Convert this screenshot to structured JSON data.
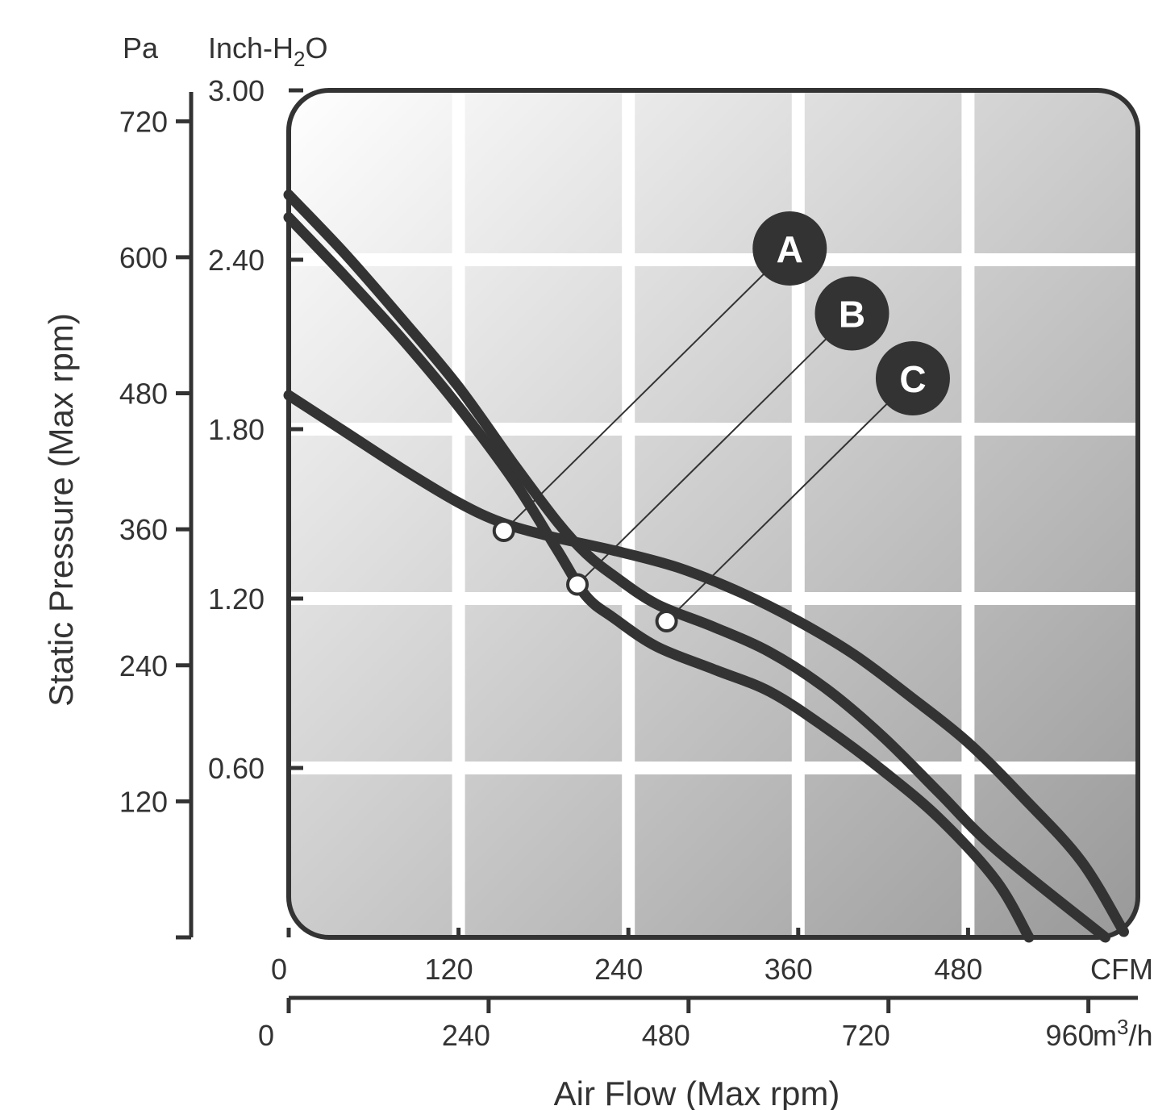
{
  "chart_data": {
    "type": "line",
    "title": "",
    "xlabel": "Air Flow (Max rpm)",
    "ylabel": "Static Pressure (Max rpm)",
    "x_unit_primary": "CFM",
    "x_unit_secondary": "m³/h",
    "x_unit_secondary_base": "m",
    "x_unit_secondary_sup": "3",
    "x_unit_secondary_tail": "/h",
    "y_unit_primary": "Inch-H₂O",
    "y_unit_primary_base": "Inch-H",
    "y_unit_primary_sub": "2",
    "y_unit_primary_tail": "O",
    "y_unit_secondary": "Pa",
    "x_ticks_cfm": [
      "0",
      "120",
      "240",
      "360",
      "480"
    ],
    "x_ticks_m3h": [
      "0",
      "240",
      "480",
      "720",
      "960"
    ],
    "y_ticks_inh2o": [
      "3.00",
      "2.40",
      "1.80",
      "1.20",
      "0.60"
    ],
    "y_ticks_pa": [
      "720",
      "600",
      "480",
      "360",
      "240",
      "120"
    ],
    "xlim_cfm": [
      0,
      600
    ],
    "ylim_inh2o": [
      0,
      3.0
    ],
    "grid": true,
    "series": [
      {
        "name": "A",
        "x": [
          0,
          40,
          80,
          120,
          150,
          185,
          230,
          275,
          320,
          360,
          400,
          440,
          480,
          520,
          560,
          590
        ],
        "y": [
          1.92,
          1.79,
          1.66,
          1.54,
          1.47,
          1.42,
          1.37,
          1.31,
          1.22,
          1.12,
          1.0,
          0.85,
          0.69,
          0.49,
          0.27,
          0.02
        ]
      },
      {
        "name": "B",
        "x": [
          0,
          40,
          80,
          120,
          160,
          190,
          210,
          230,
          260,
          300,
          340,
          380,
          420,
          460,
          500,
          523
        ],
        "y": [
          2.55,
          2.34,
          2.12,
          1.88,
          1.61,
          1.37,
          1.21,
          1.13,
          1.03,
          0.95,
          0.87,
          0.74,
          0.59,
          0.42,
          0.2,
          0.0
        ]
      },
      {
        "name": "C",
        "x": [
          0,
          40,
          80,
          120,
          160,
          190,
          210,
          230,
          260,
          300,
          340,
          380,
          420,
          460,
          500,
          577
        ],
        "y": [
          2.63,
          2.42,
          2.19,
          1.95,
          1.67,
          1.47,
          1.36,
          1.28,
          1.18,
          1.1,
          1.01,
          0.88,
          0.71,
          0.51,
          0.31,
          0.0
        ]
      }
    ],
    "annotations": [
      {
        "label": "A",
        "point_x": 152,
        "point_y": 1.44,
        "badge_x": 354,
        "badge_y": 2.44
      },
      {
        "label": "B",
        "point_x": 204,
        "point_y": 1.25,
        "badge_x": 398,
        "badge_y": 2.21
      },
      {
        "label": "C",
        "point_x": 267,
        "point_y": 1.12,
        "badge_x": 441,
        "badge_y": 1.98
      }
    ]
  }
}
